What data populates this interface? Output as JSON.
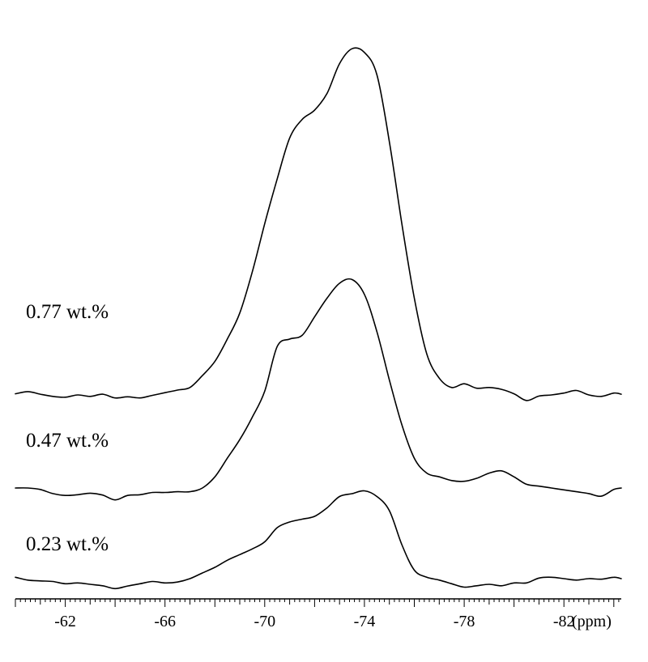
{
  "chart_data": {
    "type": "line",
    "xlabel": "(ppm)",
    "xlim": [
      -60,
      -84.3
    ],
    "x_ticks": [
      -62,
      -66,
      -70,
      -74,
      -78,
      -82
    ],
    "x_tick_labels": [
      "-62",
      "-66",
      "-70",
      "-74",
      "-78",
      "-82"
    ],
    "y_axis_shown": false,
    "grid": false,
    "series": [
      {
        "name": "0.77 wt.%",
        "x": [
          -60.0,
          -60.5,
          -61.0,
          -61.5,
          -62.0,
          -62.5,
          -63.0,
          -63.5,
          -64.0,
          -64.5,
          -65.0,
          -65.5,
          -66.0,
          -66.5,
          -67.0,
          -67.5,
          -68.0,
          -68.5,
          -69.0,
          -69.5,
          -70.0,
          -70.5,
          -71.0,
          -71.5,
          -72.0,
          -72.5,
          -73.0,
          -73.5,
          -74.0,
          -74.5,
          -75.0,
          -75.5,
          -76.0,
          -76.5,
          -77.0,
          -77.5,
          -78.0,
          -78.5,
          -79.0,
          -79.5,
          -80.0,
          -80.5,
          -81.0,
          -81.5,
          -82.0,
          -82.5,
          -83.0,
          -83.5,
          -84.0,
          -84.3
        ],
        "y": [
          0.3,
          0.9,
          0.2,
          -0.4,
          -0.6,
          0.0,
          -0.4,
          0.2,
          -0.8,
          -0.5,
          -0.8,
          -0.1,
          0.6,
          1.3,
          2.0,
          5.2,
          9.0,
          15.0,
          22.0,
          33.0,
          46.0,
          58.0,
          69.0,
          74.0,
          76.5,
          81.0,
          89.0,
          93.0,
          92.0,
          86.0,
          68.0,
          46.0,
          26.0,
          11.0,
          4.5,
          2.0,
          3.0,
          1.8,
          2.0,
          1.5,
          0.3,
          -1.5,
          -0.3,
          0.0,
          0.5,
          1.2,
          0.0,
          -0.4,
          0.5,
          0.2
        ]
      },
      {
        "name": "0.47 wt.%",
        "x": [
          -60.0,
          -60.5,
          -61.0,
          -61.5,
          -62.0,
          -62.5,
          -63.0,
          -63.5,
          -64.0,
          -64.5,
          -65.0,
          -65.5,
          -66.0,
          -66.5,
          -67.0,
          -67.5,
          -68.0,
          -68.5,
          -69.0,
          -69.5,
          -70.0,
          -70.5,
          -71.0,
          -71.5,
          -72.0,
          -72.5,
          -73.0,
          -73.5,
          -74.0,
          -74.5,
          -75.0,
          -75.5,
          -76.0,
          -76.5,
          -77.0,
          -77.5,
          -78.0,
          -78.5,
          -79.0,
          -79.5,
          -80.0,
          -80.5,
          -81.0,
          -81.5,
          -82.0,
          -82.5,
          -83.0,
          -83.5,
          -84.0,
          -84.3
        ],
        "y": [
          0.0,
          0.0,
          -0.4,
          -1.5,
          -2.0,
          -1.8,
          -1.4,
          -1.9,
          -3.2,
          -2.0,
          -1.8,
          -1.2,
          -1.2,
          -1.0,
          -1.0,
          0.0,
          3.0,
          8.0,
          13.0,
          19.0,
          26.0,
          38.0,
          40.0,
          41.0,
          46.0,
          51.0,
          55.0,
          56.0,
          52.0,
          42.0,
          29.0,
          17.0,
          8.0,
          4.0,
          3.0,
          2.0,
          1.8,
          2.6,
          4.0,
          4.6,
          3.0,
          1.0,
          0.5,
          0.0,
          -0.5,
          -1.0,
          -1.5,
          -2.2,
          -0.4,
          0.0
        ]
      },
      {
        "name": "0.23 wt.%",
        "x": [
          -60.0,
          -60.5,
          -61.0,
          -61.5,
          -62.0,
          -62.5,
          -63.0,
          -63.5,
          -64.0,
          -64.5,
          -65.0,
          -65.5,
          -66.0,
          -66.5,
          -67.0,
          -67.5,
          -68.0,
          -68.5,
          -69.0,
          -69.5,
          -70.0,
          -70.5,
          -71.0,
          -71.5,
          -72.0,
          -72.5,
          -73.0,
          -73.5,
          -74.0,
          -74.5,
          -75.0,
          -75.5,
          -76.0,
          -76.5,
          -77.0,
          -77.5,
          -78.0,
          -78.5,
          -79.0,
          -79.5,
          -80.0,
          -80.5,
          -81.0,
          -81.5,
          -82.0,
          -82.5,
          -83.0,
          -83.5,
          -84.0,
          -84.3
        ],
        "y": [
          0.5,
          -0.5,
          -0.8,
          -1.0,
          -1.8,
          -1.5,
          -2.0,
          -2.5,
          -3.5,
          -2.6,
          -1.8,
          -1.0,
          -1.5,
          -1.2,
          0.0,
          2.0,
          4.0,
          6.5,
          8.5,
          10.5,
          13.0,
          18.0,
          20.0,
          21.0,
          22.0,
          25.0,
          29.0,
          30.0,
          31.0,
          29.0,
          24.0,
          12.0,
          3.0,
          0.5,
          -0.5,
          -1.8,
          -3.0,
          -2.5,
          -2.0,
          -2.5,
          -1.5,
          -1.5,
          0.2,
          0.5,
          0.0,
          -0.5,
          0.0,
          -0.2,
          0.5,
          0.0
        ]
      }
    ],
    "annotations": [
      "0.77 wt.%",
      "0.47 wt.%",
      "0.23 wt.%"
    ]
  }
}
